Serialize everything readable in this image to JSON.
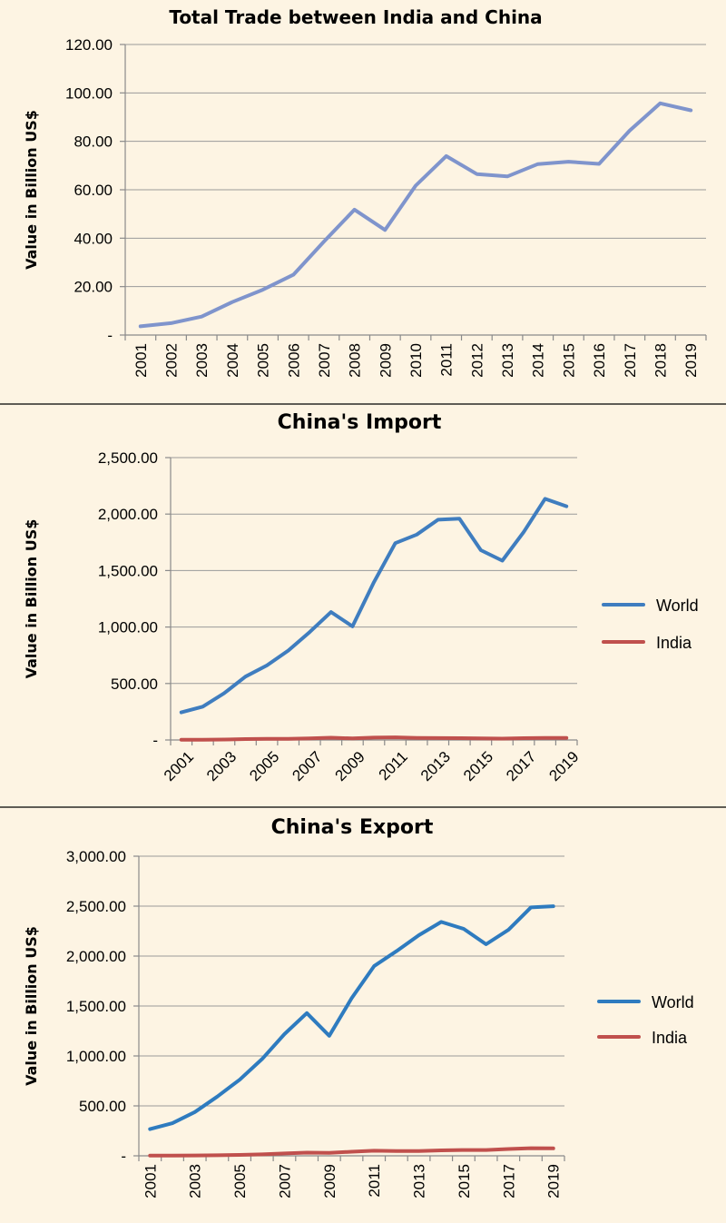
{
  "chart_data": [
    {
      "type": "line",
      "title": "Total Trade between India and China",
      "ylabel": "Value in Billion US$",
      "xlabel": "",
      "categories": [
        "2001",
        "2002",
        "2003",
        "2004",
        "2005",
        "2006",
        "2007",
        "2008",
        "2009",
        "2010",
        "2011",
        "2012",
        "2013",
        "2014",
        "2015",
        "2016",
        "2017",
        "2018",
        "2019"
      ],
      "x_tick_labels": [
        "2001",
        "2002",
        "2003",
        "2004",
        "2005",
        "2006",
        "2007",
        "2008",
        "2009",
        "2010",
        "2011",
        "2012",
        "2013",
        "2014",
        "2015",
        "2016",
        "2017",
        "2018",
        "2019"
      ],
      "y_tick_labels": [
        "-",
        "20.00",
        "40.00",
        "60.00",
        "80.00",
        "100.00",
        "120.00"
      ],
      "ylim": [
        0,
        120
      ],
      "grid": true,
      "legend": "none",
      "series": [
        {
          "values": [
            3.6,
            4.9,
            7.6,
            13.6,
            18.7,
            24.9,
            38.6,
            51.8,
            43.4,
            61.7,
            73.9,
            66.5,
            65.5,
            70.6,
            71.6,
            70.7,
            84.4,
            95.7,
            92.8
          ],
          "color": "#7f94cc"
        }
      ]
    },
    {
      "type": "line",
      "title": "China's Import",
      "ylabel": "Value in Billion US$",
      "xlabel": "",
      "categories": [
        "2001",
        "2002",
        "2003",
        "2004",
        "2005",
        "2006",
        "2007",
        "2008",
        "2009",
        "2010",
        "2011",
        "2012",
        "2013",
        "2014",
        "2015",
        "2016",
        "2017",
        "2018",
        "2019"
      ],
      "x_tick_labels": [
        "2001",
        "",
        "2003",
        "",
        "2005",
        "",
        "2007",
        "",
        "2009",
        "",
        "2011",
        "",
        "2013",
        "",
        "2015",
        "",
        "2017",
        "",
        "2019"
      ],
      "y_tick_labels": [
        "-",
        "500.00",
        "1,000.00",
        "1,500.00",
        "2,000.00",
        "2,500.00"
      ],
      "ylim": [
        0,
        2500
      ],
      "grid": true,
      "legend": "right",
      "series": [
        {
          "name": "World",
          "values": [
            244,
            295,
            413,
            561,
            660,
            792,
            956,
            1133,
            1006,
            1396,
            1743,
            1818,
            1950,
            1959,
            1680,
            1588,
            1842,
            2135,
            2069
          ],
          "color": "#3f7dbf"
        },
        {
          "name": "India",
          "values": [
            1.7,
            2.3,
            4.3,
            7.7,
            9.8,
            10.3,
            14.6,
            20.3,
            13.7,
            20.8,
            23.4,
            18.8,
            17.0,
            16.4,
            13.4,
            11.8,
            16.3,
            18.8,
            17.9
          ],
          "color": "#c0504d"
        }
      ]
    },
    {
      "type": "line",
      "title": "China's Export",
      "ylabel": "Value in Billion US$",
      "xlabel": "",
      "categories": [
        "2001",
        "2002",
        "2003",
        "2004",
        "2005",
        "2006",
        "2007",
        "2008",
        "2009",
        "2010",
        "2011",
        "2012",
        "2013",
        "2014",
        "2015",
        "2016",
        "2017",
        "2018",
        "2019"
      ],
      "x_tick_labels": [
        "2001",
        "",
        "2003",
        "",
        "2005",
        "",
        "2007",
        "",
        "2009",
        "",
        "2011",
        "",
        "2013",
        "",
        "2015",
        "",
        "2017",
        "",
        "2019"
      ],
      "y_tick_labels": [
        "-",
        "500.00",
        "1,000.00",
        "1,500.00",
        "2,000.00",
        "2,500.00",
        "3,000.00"
      ],
      "ylim": [
        0,
        3000
      ],
      "grid": true,
      "legend": "right",
      "series": [
        {
          "name": "World",
          "values": [
            267,
            326,
            438,
            593,
            762,
            969,
            1218,
            1429,
            1202,
            1578,
            1899,
            2049,
            2209,
            2342,
            2273,
            2118,
            2263,
            2487,
            2499
          ],
          "color": "#2e7bbf"
        },
        {
          "name": "India",
          "values": [
            1.9,
            2.7,
            3.3,
            5.9,
            8.9,
            14.6,
            24.0,
            31.5,
            29.6,
            40.9,
            50.5,
            47.7,
            48.4,
            54.2,
            58.2,
            58.4,
            68.0,
            76.7,
            74.8
          ],
          "color": "#c0504d"
        }
      ]
    }
  ]
}
